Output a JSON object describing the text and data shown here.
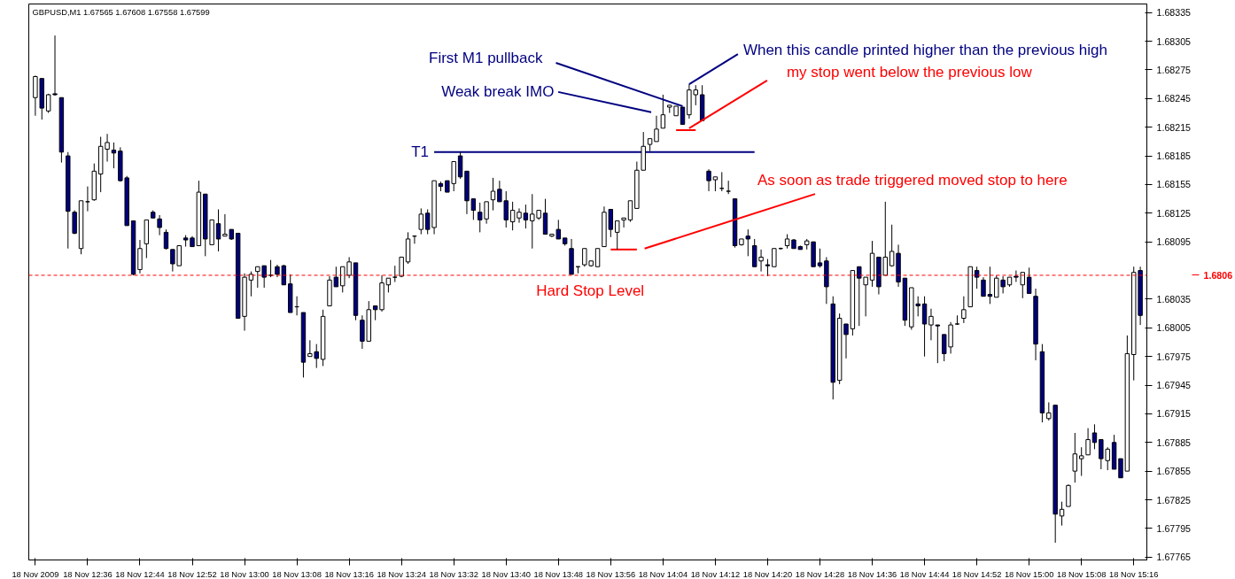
{
  "chart_data": {
    "type": "candlestick",
    "title": "GBPUSD,M1  1.67565 1.67608 1.67558 1.67599",
    "x": [
      "2009-11-18T12:28",
      "2009-11-18T12:29",
      "2009-11-18T12:30",
      "2009-11-18T12:31",
      "2009-11-18T12:32",
      "2009-11-18T12:33",
      "2009-11-18T12:34",
      "2009-11-18T12:35",
      "2009-11-18T12:36",
      "2009-11-18T12:37",
      "2009-11-18T12:38",
      "2009-11-18T12:39",
      "2009-11-18T12:40",
      "2009-11-18T12:41",
      "2009-11-18T12:42",
      "2009-11-18T12:43",
      "2009-11-18T12:44",
      "2009-11-18T12:45",
      "2009-11-18T12:46",
      "2009-11-18T12:47",
      "2009-11-18T12:48",
      "2009-11-18T12:49",
      "2009-11-18T12:50",
      "2009-11-18T12:51",
      "2009-11-18T12:52",
      "2009-11-18T12:53",
      "2009-11-18T12:54",
      "2009-11-18T12:55",
      "2009-11-18T12:56",
      "2009-11-18T12:57",
      "2009-11-18T12:58",
      "2009-11-18T12:59",
      "2009-11-18T13:00",
      "2009-11-18T13:01",
      "2009-11-18T13:02",
      "2009-11-18T13:03",
      "2009-11-18T13:04",
      "2009-11-18T13:05",
      "2009-11-18T13:06",
      "2009-11-18T13:07",
      "2009-11-18T13:08",
      "2009-11-18T13:09",
      "2009-11-18T13:10",
      "2009-11-18T13:11",
      "2009-11-18T13:12",
      "2009-11-18T13:13",
      "2009-11-18T13:14",
      "2009-11-18T13:15",
      "2009-11-18T13:16",
      "2009-11-18T13:17",
      "2009-11-18T13:18",
      "2009-11-18T13:19",
      "2009-11-18T13:20",
      "2009-11-18T13:21",
      "2009-11-18T13:22",
      "2009-11-18T13:23",
      "2009-11-18T13:24",
      "2009-11-18T13:25",
      "2009-11-18T13:26",
      "2009-11-18T13:27",
      "2009-11-18T13:28",
      "2009-11-18T13:29",
      "2009-11-18T13:30",
      "2009-11-18T13:31",
      "2009-11-18T13:32",
      "2009-11-18T13:33",
      "2009-11-18T13:34",
      "2009-11-18T13:35",
      "2009-11-18T13:36",
      "2009-11-18T13:37",
      "2009-11-18T13:38",
      "2009-11-18T13:39",
      "2009-11-18T13:40",
      "2009-11-18T13:41",
      "2009-11-18T13:42",
      "2009-11-18T13:43",
      "2009-11-18T13:44",
      "2009-11-18T13:45",
      "2009-11-18T13:46",
      "2009-11-18T13:47",
      "2009-11-18T13:48",
      "2009-11-18T13:49",
      "2009-11-18T13:50",
      "2009-11-18T13:51",
      "2009-11-18T13:52",
      "2009-11-18T13:53",
      "2009-11-18T13:54",
      "2009-11-18T13:55",
      "2009-11-18T13:56",
      "2009-11-18T13:57",
      "2009-11-18T13:58",
      "2009-11-18T13:59",
      "2009-11-18T14:00",
      "2009-11-18T14:01",
      "2009-11-18T14:02",
      "2009-11-18T14:03",
      "2009-11-18T14:04",
      "2009-11-18T14:05",
      "2009-11-18T14:06",
      "2009-11-18T14:07",
      "2009-11-18T14:08",
      "2009-11-18T14:09",
      "2009-11-18T14:10",
      "2009-11-18T14:11",
      "2009-11-18T14:12",
      "2009-11-18T14:13",
      "2009-11-18T14:14",
      "2009-11-18T14:15",
      "2009-11-18T14:16",
      "2009-11-18T14:17",
      "2009-11-18T14:18",
      "2009-11-18T14:19",
      "2009-11-18T14:20",
      "2009-11-18T14:21",
      "2009-11-18T14:22",
      "2009-11-18T14:23",
      "2009-11-18T14:24",
      "2009-11-18T14:25",
      "2009-11-18T14:26",
      "2009-11-18T14:27",
      "2009-11-18T14:28",
      "2009-11-18T14:29",
      "2009-11-18T14:30",
      "2009-11-18T14:31",
      "2009-11-18T14:32",
      "2009-11-18T14:33",
      "2009-11-18T14:34",
      "2009-11-18T14:35",
      "2009-11-18T14:36",
      "2009-11-18T14:37",
      "2009-11-18T14:38",
      "2009-11-18T14:39",
      "2009-11-18T14:40",
      "2009-11-18T14:41",
      "2009-11-18T14:42",
      "2009-11-18T14:43",
      "2009-11-18T14:44",
      "2009-11-18T14:45",
      "2009-11-18T14:46",
      "2009-11-18T14:47",
      "2009-11-18T14:48",
      "2009-11-18T14:49",
      "2009-11-18T14:50",
      "2009-11-18T14:51",
      "2009-11-18T14:52",
      "2009-11-18T14:53",
      "2009-11-18T14:54",
      "2009-11-18T14:55",
      "2009-11-18T14:56",
      "2009-11-18T14:57",
      "2009-11-18T14:58",
      "2009-11-18T14:59",
      "2009-11-18T15:00",
      "2009-11-18T15:01",
      "2009-11-18T15:02",
      "2009-11-18T15:03",
      "2009-11-18T15:04",
      "2009-11-18T15:05",
      "2009-11-18T15:06",
      "2009-11-18T15:07",
      "2009-11-18T15:08",
      "2009-11-18T15:09",
      "2009-11-18T15:10",
      "2009-11-18T15:11",
      "2009-11-18T15:12",
      "2009-11-18T15:13",
      "2009-11-18T15:14",
      "2009-11-18T15:15",
      "2009-11-18T15:16",
      "2009-11-18T15:17"
    ],
    "ohlc": [
      [
        1.68246,
        1.68269,
        1.68227,
        1.68268
      ],
      [
        1.68266,
        1.68266,
        1.68223,
        1.68235
      ],
      [
        1.68232,
        1.6825,
        1.6823,
        1.68249
      ],
      [
        1.6825,
        1.68311,
        1.68248,
        1.68249
      ],
      [
        1.68246,
        1.68246,
        1.68178,
        1.68189
      ],
      [
        1.68185,
        1.68189,
        1.68088,
        1.68127
      ],
      [
        1.68126,
        1.68128,
        1.68103,
        1.68104
      ],
      [
        1.68088,
        1.68138,
        1.68082,
        1.68138
      ],
      [
        1.68137,
        1.68153,
        1.68127,
        1.68137
      ],
      [
        1.68139,
        1.68177,
        1.68138,
        1.68169
      ],
      [
        1.68166,
        1.68205,
        1.68147,
        1.68195
      ],
      [
        1.68192,
        1.68208,
        1.68179,
        1.68199
      ],
      [
        1.68191,
        1.68199,
        1.68172,
        1.68188
      ],
      [
        1.6819,
        1.68194,
        1.68158,
        1.68159
      ],
      [
        1.68162,
        1.68164,
        1.68112,
        1.68112
      ],
      [
        1.68117,
        1.68117,
        1.6806,
        1.68061
      ],
      [
        1.68066,
        1.68097,
        1.68062,
        1.68088
      ],
      [
        1.68093,
        1.68118,
        1.68078,
        1.68118
      ],
      [
        1.68126,
        1.68128,
        1.6812,
        1.6812
      ],
      [
        1.68119,
        1.68123,
        1.68102,
        1.6811
      ],
      [
        1.68105,
        1.68108,
        1.68087,
        1.68088
      ],
      [
        1.68087,
        1.68087,
        1.68064,
        1.68072
      ],
      [
        1.6807,
        1.68091,
        1.6807,
        1.68091
      ],
      [
        1.68099,
        1.68102,
        1.6809,
        1.68097
      ],
      [
        1.68099,
        1.68101,
        1.6809,
        1.6809
      ],
      [
        1.68091,
        1.68159,
        1.68091,
        1.68147
      ],
      [
        1.68145,
        1.68145,
        1.6808,
        1.68098
      ],
      [
        1.68092,
        1.68118,
        1.68092,
        1.68118
      ],
      [
        1.68114,
        1.68129,
        1.68085,
        1.68098
      ],
      [
        1.68101,
        1.68124,
        1.68101,
        1.68103
      ],
      [
        1.68108,
        1.68108,
        1.68097,
        1.68098
      ],
      [
        1.68104,
        1.68104,
        1.68015,
        1.68015
      ],
      [
        1.68017,
        1.68062,
        1.68002,
        1.68058
      ],
      [
        1.68055,
        1.68064,
        1.68038,
        1.68061
      ],
      [
        1.68064,
        1.68069,
        1.68047,
        1.68069
      ],
      [
        1.6807,
        1.6807,
        1.68047,
        1.68058
      ],
      [
        1.6806,
        1.68076,
        1.68058,
        1.6806
      ],
      [
        1.68069,
        1.68071,
        1.68058,
        1.68061
      ],
      [
        1.6807,
        1.68071,
        1.6805,
        1.6805
      ],
      [
        1.68051,
        1.68061,
        1.68021,
        1.68021
      ],
      [
        1.68027,
        1.68038,
        1.68018,
        1.68027
      ],
      [
        1.68021,
        1.68021,
        1.67953,
        1.67969
      ],
      [
        1.67975,
        1.67992,
        1.67975,
        1.67978
      ],
      [
        1.6798,
        1.67988,
        1.67963,
        1.67973
      ],
      [
        1.67972,
        1.68024,
        1.67965,
        1.68017
      ],
      [
        1.68028,
        1.68059,
        1.68028,
        1.68055
      ],
      [
        1.68058,
        1.68069,
        1.68048,
        1.68048
      ],
      [
        1.68049,
        1.68069,
        1.68042,
        1.68069
      ],
      [
        1.6806,
        1.68079,
        1.68057,
        1.68074
      ],
      [
        1.68073,
        1.68073,
        1.68013,
        1.68018
      ],
      [
        1.68013,
        1.68018,
        1.67983,
        1.67991
      ],
      [
        1.67991,
        1.68033,
        1.67991,
        1.68024
      ],
      [
        1.68028,
        1.68028,
        1.68013,
        1.68024
      ],
      [
        1.68024,
        1.6806,
        1.68022,
        1.68052
      ],
      [
        1.6805,
        1.68057,
        1.68042,
        1.68057
      ],
      [
        1.68058,
        1.6807,
        1.68053,
        1.68058
      ],
      [
        1.68059,
        1.68079,
        1.68058,
        1.68079
      ],
      [
        1.68074,
        1.68105,
        1.68072,
        1.68098
      ],
      [
        1.68101,
        1.68101,
        1.68093,
        1.68101
      ],
      [
        1.68108,
        1.6813,
        1.68103,
        1.68124
      ],
      [
        1.68125,
        1.68129,
        1.68103,
        1.68108
      ],
      [
        1.6811,
        1.68159,
        1.68103,
        1.68159
      ],
      [
        1.68156,
        1.68158,
        1.68148,
        1.68153
      ],
      [
        1.68159,
        1.68159,
        1.68147,
        1.68147
      ],
      [
        1.68156,
        1.68179,
        1.68148,
        1.68179
      ],
      [
        1.68185,
        1.68189,
        1.68161,
        1.68163
      ],
      [
        1.68169,
        1.68169,
        1.68124,
        1.68138
      ],
      [
        1.6814,
        1.6814,
        1.68118,
        1.68128
      ],
      [
        1.68126,
        1.68136,
        1.68105,
        1.68118
      ],
      [
        1.68119,
        1.68137,
        1.68114,
        1.68137
      ],
      [
        1.68139,
        1.68162,
        1.68128,
        1.68148
      ],
      [
        1.6815,
        1.68159,
        1.68137,
        1.68137
      ],
      [
        1.68138,
        1.68148,
        1.6811,
        1.68118
      ],
      [
        1.68116,
        1.68137,
        1.68107,
        1.68128
      ],
      [
        1.6812,
        1.6813,
        1.68115,
        1.68126
      ],
      [
        1.68125,
        1.68134,
        1.68109,
        1.68118
      ],
      [
        1.68117,
        1.68145,
        1.68088,
        1.68124
      ],
      [
        1.6812,
        1.68128,
        1.68118,
        1.68128
      ],
      [
        1.68125,
        1.6814,
        1.68103,
        1.68103
      ],
      [
        1.68101,
        1.68103,
        1.681,
        1.68103
      ],
      [
        1.68108,
        1.68118,
        1.68098,
        1.68098
      ],
      [
        1.68099,
        1.68099,
        1.68091,
        1.68093
      ],
      [
        1.68088,
        1.68098,
        1.68061,
        1.68061
      ],
      [
        1.68069,
        1.68069,
        1.68062,
        1.68069
      ],
      [
        1.68071,
        1.68088,
        1.68069,
        1.68088
      ],
      [
        1.6807,
        1.68075,
        1.68069,
        1.68075
      ],
      [
        1.68069,
        1.68088,
        1.68069,
        1.68088
      ],
      [
        1.6809,
        1.68132,
        1.6809,
        1.68126
      ],
      [
        1.68129,
        1.68129,
        1.681,
        1.68108
      ],
      [
        1.68105,
        1.68117,
        1.68087,
        1.68117
      ],
      [
        1.68118,
        1.6812,
        1.6811,
        1.6812
      ],
      [
        1.68118,
        1.68138,
        1.68116,
        1.68138
      ],
      [
        1.6813,
        1.68179,
        1.6813,
        1.6817
      ],
      [
        1.6817,
        1.6821,
        1.6817,
        1.68195
      ],
      [
        1.68197,
        1.68203,
        1.6819,
        1.68203
      ],
      [
        1.682,
        1.68227,
        1.682,
        1.68213
      ],
      [
        1.68214,
        1.68249,
        1.68214,
        1.68228
      ],
      [
        1.68236,
        1.68238,
        1.6823,
        1.68238
      ],
      [
        1.68227,
        1.68237,
        1.68227,
        1.68237
      ],
      [
        1.68236,
        1.68236,
        1.68218,
        1.68218
      ],
      [
        1.68228,
        1.6826,
        1.68224,
        1.68254
      ],
      [
        1.68249,
        1.68259,
        1.68238,
        1.68254
      ],
      [
        1.68249,
        1.68259,
        1.68222,
        1.68222
      ],
      [
        1.68169,
        1.68171,
        1.68148,
        1.68159
      ],
      [
        1.6816,
        1.68163,
        1.68148,
        1.68163
      ],
      [
        1.68151,
        1.68168,
        1.68148,
        1.68151
      ],
      [
        1.68148,
        1.68159,
        1.68145,
        1.68148
      ],
      [
        1.6814,
        1.6814,
        1.68089,
        1.68091
      ],
      [
        1.68092,
        1.68098,
        1.68091,
        1.68098
      ],
      [
        1.68101,
        1.68108,
        1.6808,
        1.68098
      ],
      [
        1.68091,
        1.68098,
        1.68069,
        1.68069
      ],
      [
        1.68075,
        1.68087,
        1.68064,
        1.68079
      ],
      [
        1.68071,
        1.68077,
        1.68059,
        1.6807
      ],
      [
        1.68069,
        1.68088,
        1.68069,
        1.68088
      ],
      [
        1.68088,
        1.68089,
        1.68087,
        1.68088
      ],
      [
        1.68091,
        1.68103,
        1.68088,
        1.68098
      ],
      [
        1.68097,
        1.68098,
        1.68088,
        1.68088
      ],
      [
        1.6809,
        1.68091,
        1.68087,
        1.68087
      ],
      [
        1.68092,
        1.68098,
        1.68087,
        1.68096
      ],
      [
        1.68095,
        1.68095,
        1.68069,
        1.68069
      ],
      [
        1.68073,
        1.68088,
        1.68068,
        1.6807
      ],
      [
        1.68075,
        1.68079,
        1.6803,
        1.68048
      ],
      [
        1.6803,
        1.68038,
        1.6793,
        1.67948
      ],
      [
        1.6795,
        1.6802,
        1.67946,
        1.68015
      ],
      [
        1.68009,
        1.68009,
        1.67973,
        1.67998
      ],
      [
        1.68004,
        1.68065,
        1.67997,
        1.68065
      ],
      [
        1.68069,
        1.68069,
        1.68007,
        1.68057
      ],
      [
        1.6805,
        1.68058,
        1.68017,
        1.68058
      ],
      [
        1.68055,
        1.68096,
        1.68048,
        1.68083
      ],
      [
        1.68079,
        1.68079,
        1.6804,
        1.68048
      ],
      [
        1.6806,
        1.68137,
        1.6806,
        1.68079
      ],
      [
        1.6807,
        1.68113,
        1.68069,
        1.68085
      ],
      [
        1.68083,
        1.68092,
        1.68048,
        1.68053
      ],
      [
        1.68057,
        1.68057,
        1.68007,
        1.68013
      ],
      [
        1.68006,
        1.68047,
        1.68003,
        1.68047
      ],
      [
        1.6803,
        1.68038,
        1.68017,
        1.68028
      ],
      [
        1.6803,
        1.68038,
        1.67975,
        1.68009
      ],
      [
        1.68008,
        1.68025,
        1.67992,
        1.68017
      ],
      [
        1.68008,
        1.68008,
        1.67968,
        1.68007
      ],
      [
        1.67998,
        1.67998,
        1.6797,
        1.67978
      ],
      [
        1.67985,
        1.68011,
        1.67978,
        1.68008
      ],
      [
        1.68009,
        1.68018,
        1.68008,
        1.68009
      ],
      [
        1.68015,
        1.68038,
        1.6801,
        1.68024
      ],
      [
        1.68027,
        1.68069,
        1.68027,
        1.68069
      ],
      [
        1.68065,
        1.68069,
        1.68046,
        1.68058
      ],
      [
        1.68055,
        1.68058,
        1.68038,
        1.68038
      ],
      [
        1.6804,
        1.68069,
        1.6803,
        1.68038
      ],
      [
        1.68037,
        1.6806,
        1.68037,
        1.68057
      ],
      [
        1.68055,
        1.68059,
        1.68041,
        1.68048
      ],
      [
        1.6805,
        1.68058,
        1.68048,
        1.68058
      ],
      [
        1.68059,
        1.68065,
        1.68053,
        1.68058
      ],
      [
        1.6805,
        1.68063,
        1.68036,
        1.68063
      ],
      [
        1.68058,
        1.68068,
        1.68041,
        1.68041
      ],
      [
        1.68038,
        1.68046,
        1.67971,
        1.67988
      ],
      [
        1.6798,
        1.67988,
        1.67906,
        1.67916
      ],
      [
        1.6791,
        1.67927,
        1.67908,
        1.67916
      ],
      [
        1.67924,
        1.67924,
        1.6778,
        1.6781
      ],
      [
        1.67808,
        1.67823,
        1.67798,
        1.67815
      ],
      [
        1.67818,
        1.67841,
        1.67818,
        1.6784
      ],
      [
        1.67855,
        1.67895,
        1.67843,
        1.67873
      ],
      [
        1.67868,
        1.6788,
        1.6785,
        1.67871
      ],
      [
        1.67872,
        1.679,
        1.67872,
        1.67888
      ],
      [
        1.67895,
        1.67904,
        1.67878,
        1.67885
      ],
      [
        1.67888,
        1.67888,
        1.67857,
        1.67868
      ],
      [
        1.67866,
        1.6788,
        1.67856,
        1.67878
      ],
      [
        1.67885,
        1.67893,
        1.67857,
        1.67857
      ],
      [
        1.67868,
        1.67868,
        1.67848,
        1.67848
      ],
      [
        1.67855,
        1.67997,
        1.67855,
        1.67978
      ],
      [
        1.67977,
        1.68069,
        1.6795,
        1.68063
      ],
      [
        1.68065,
        1.68069,
        1.68008,
        1.68018
      ]
    ],
    "xlim": [
      "2009-11-18T12:27",
      "2009-11-18T15:18"
    ],
    "ylim": [
      1.67762,
      1.68344
    ],
    "xticks": [
      {
        "value": "2009-11-18T12:28",
        "label": "18 Nov 2009"
      },
      {
        "value": "2009-11-18T12:36",
        "label": "18 Nov 12:36"
      },
      {
        "value": "2009-11-18T12:44",
        "label": "18 Nov 12:44"
      },
      {
        "value": "2009-11-18T12:52",
        "label": "18 Nov 12:52"
      },
      {
        "value": "2009-11-18T13:00",
        "label": "18 Nov 13:00"
      },
      {
        "value": "2009-11-18T13:08",
        "label": "18 Nov 13:08"
      },
      {
        "value": "2009-11-18T13:16",
        "label": "18 Nov 13:16"
      },
      {
        "value": "2009-11-18T13:24",
        "label": "18 Nov 13:24"
      },
      {
        "value": "2009-11-18T13:32",
        "label": "18 Nov 13:32"
      },
      {
        "value": "2009-11-18T13:40",
        "label": "18 Nov 13:40"
      },
      {
        "value": "2009-11-18T13:48",
        "label": "18 Nov 13:48"
      },
      {
        "value": "2009-11-18T13:56",
        "label": "18 Nov 13:56"
      },
      {
        "value": "2009-11-18T14:04",
        "label": "18 Nov 14:04"
      },
      {
        "value": "2009-11-18T14:12",
        "label": "18 Nov 14:12"
      },
      {
        "value": "2009-11-18T14:20",
        "label": "18 Nov 14:20"
      },
      {
        "value": "2009-11-18T14:28",
        "label": "18 Nov 14:28"
      },
      {
        "value": "2009-11-18T14:36",
        "label": "18 Nov 14:36"
      },
      {
        "value": "2009-11-18T14:44",
        "label": "18 Nov 14:44"
      },
      {
        "value": "2009-11-18T14:52",
        "label": "18 Nov 14:52"
      },
      {
        "value": "2009-11-18T15:00",
        "label": "18 Nov 15:00"
      },
      {
        "value": "2009-11-18T15:08",
        "label": "18 Nov 15:08"
      },
      {
        "value": "2009-11-18T15:16",
        "label": "18 Nov 15:16"
      }
    ],
    "yticks": [
      1.67765,
      1.67795,
      1.67825,
      1.67855,
      1.67885,
      1.67915,
      1.67945,
      1.67975,
      1.68005,
      1.68035,
      1.68095,
      1.68125,
      1.68155,
      1.68185,
      1.68215,
      1.68245,
      1.68275,
      1.68305,
      1.68335
    ],
    "series": [
      {
        "type": "line",
        "name": "T1",
        "color": "#000080",
        "x": [
          "2009-11-18T13:29",
          "2009-11-18T14:18"
        ],
        "values": [
          1.68189,
          1.68189
        ]
      },
      {
        "type": "line",
        "color": "#ff0000",
        "x": [
          "2009-11-18T14:06",
          "2009-11-18T14:09"
        ],
        "values": [
          1.68212,
          1.68212
        ]
      },
      {
        "type": "line",
        "color": "#ff0000",
        "x": [
          "2009-11-18T13:56",
          "2009-11-18T14:00"
        ],
        "values": [
          1.68087,
          1.68087
        ]
      }
    ],
    "ref_lines": [
      {
        "axis": "y",
        "value": 1.6806,
        "label": "1.6806",
        "color": "#ff0000",
        "line_style": "dashed"
      }
    ],
    "annotations": [
      {
        "text": "First M1 pullback",
        "x": "2009-11-18T14:07",
        "y": 1.68237
      },
      "Weak break IMO",
      {
        "text": "When this candle printed higher than the previous high",
        "x": "2009-11-18T14:08",
        "y": 1.6826
      },
      {
        "text": "my stop went below the previous low",
        "x": "2009-11-18T14:08",
        "y": 1.68214
      },
      "As soon as trade triggered moved stop to here",
      {
        "text": "Hard Stop Level",
        "x": "2009-11-18T13:53",
        "y": 1.6806
      }
    ]
  }
}
